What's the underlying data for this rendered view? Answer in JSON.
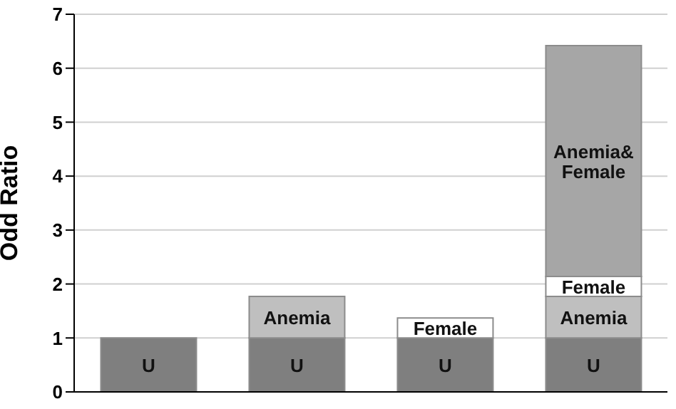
{
  "chart_data": {
    "type": "bar",
    "stacked": true,
    "ylabel": "Odd Ratio",
    "categories": [
      null,
      null,
      null,
      null
    ],
    "series": [
      {
        "name": "U",
        "color": "#7f7f7f",
        "values": [
          1,
          1,
          1,
          1
        ]
      },
      {
        "name": "Anemia",
        "color": "#bfbfbf",
        "values": [
          null,
          0.77,
          null,
          0.77
        ]
      },
      {
        "name": "Female",
        "color": "#ffffff",
        "values": [
          null,
          null,
          0.37,
          0.37
        ]
      },
      {
        "name": "Anemia& Female",
        "color": "#a6a6a6",
        "values": [
          null,
          null,
          null,
          4.28
        ]
      }
    ],
    "ylim": [
      0,
      7
    ],
    "yticks": [
      0,
      1,
      2,
      3,
      4,
      5,
      6,
      7
    ],
    "grid": "y",
    "legend": false
  }
}
